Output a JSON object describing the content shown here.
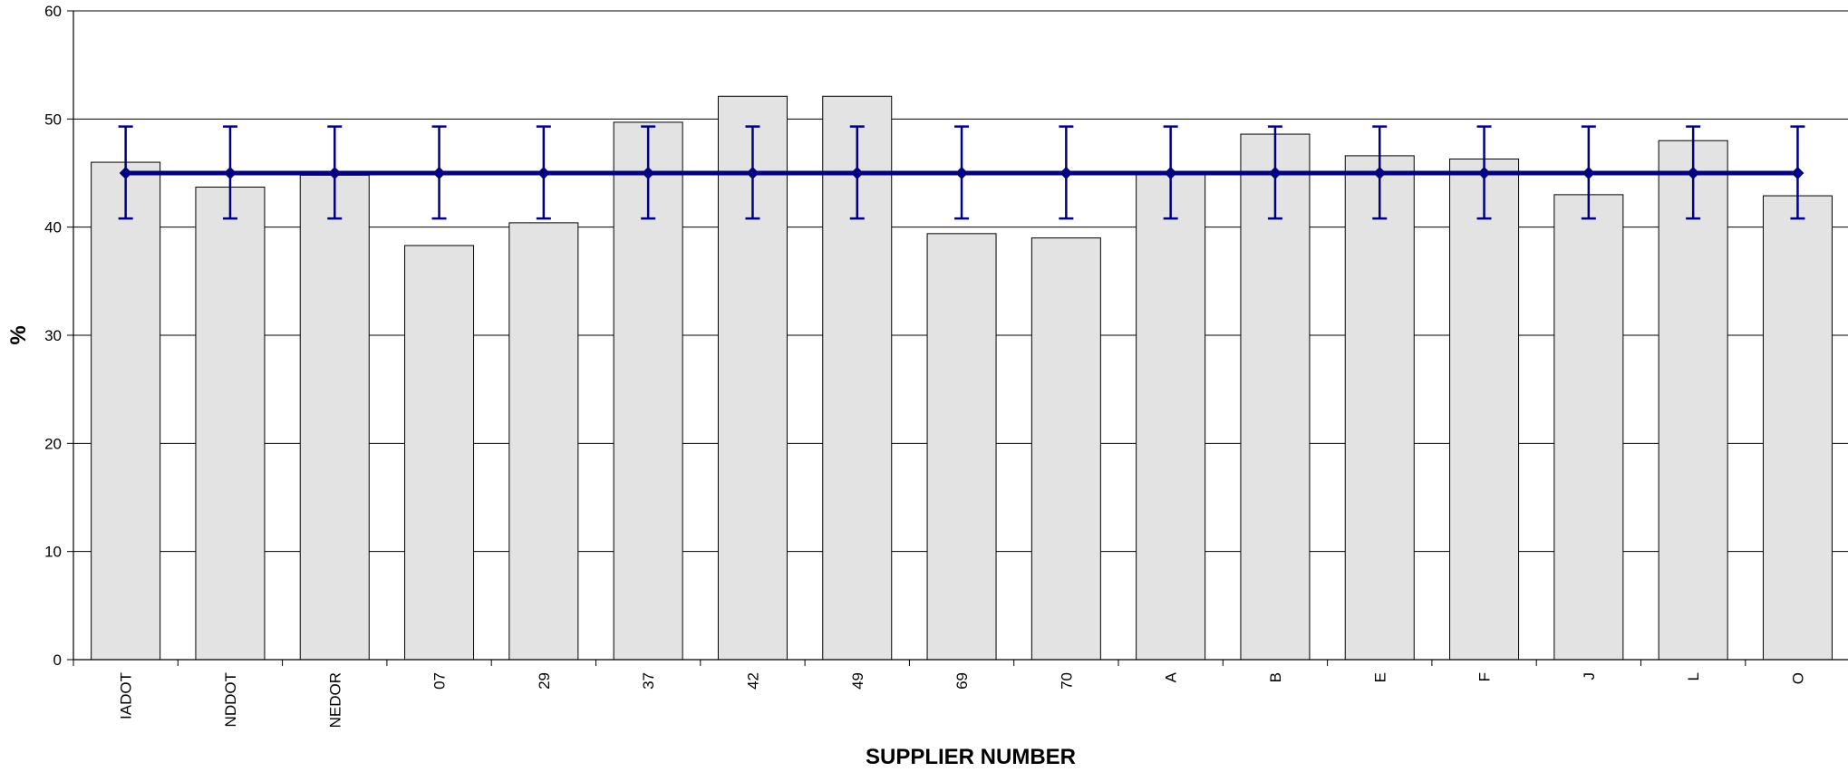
{
  "chart_data": {
    "type": "bar",
    "title": "",
    "xlabel": "SUPPLIER NUMBER",
    "ylabel": "%",
    "ylim": [
      0,
      60
    ],
    "yticks": [
      0,
      10,
      20,
      30,
      40,
      50,
      60
    ],
    "grid": true,
    "categories": [
      "IADOT",
      "NDDOT",
      "NEDOR",
      "07",
      "29",
      "37",
      "42",
      "49",
      "69",
      "70",
      "A",
      "B",
      "E",
      "F",
      "J",
      "L",
      "O"
    ],
    "series": [
      {
        "type": "bar",
        "values": [
          46.0,
          43.7,
          44.8,
          38.3,
          40.4,
          49.7,
          52.1,
          52.1,
          39.4,
          39.0,
          45.0,
          48.6,
          46.6,
          46.3,
          43.0,
          48.0,
          42.9
        ],
        "color": "#e3e3e3"
      },
      {
        "type": "line",
        "values": [
          45,
          45,
          45,
          45,
          45,
          45,
          45,
          45,
          45,
          45,
          45,
          45,
          45,
          45,
          45,
          45,
          45
        ],
        "error_low": [
          40.8,
          40.8,
          40.8,
          40.8,
          40.8,
          40.8,
          40.8,
          40.8,
          40.8,
          40.8,
          40.8,
          40.8,
          40.8,
          40.8,
          40.8,
          40.8,
          40.8
        ],
        "error_high": [
          49.3,
          49.3,
          49.3,
          49.3,
          49.3,
          49.3,
          49.3,
          49.3,
          49.3,
          49.3,
          49.3,
          49.3,
          49.3,
          49.3,
          49.3,
          49.3,
          49.3
        ],
        "color": "#000080"
      }
    ]
  }
}
